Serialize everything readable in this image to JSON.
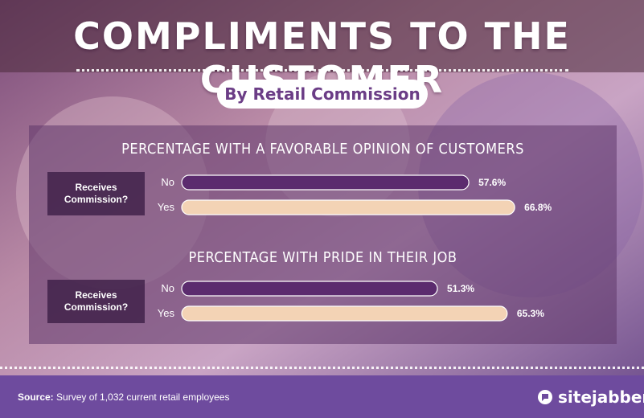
{
  "header": {
    "title": "COMPLIMENTS TO THE CUSTOMER",
    "subtitle": "By Retail Commission"
  },
  "row_label": "Receives Commission?",
  "footer": {
    "source_label": "Source:",
    "source_text": " Survey of 1,032 current retail employees",
    "brand": "sitejabber",
    "brand_icon": "sitejabber-logo-icon"
  },
  "colors": {
    "no_bar": "#5b2b6e",
    "yes_bar": "#f3d3b5",
    "footer": "#6e4b9e"
  },
  "chart_data": [
    {
      "type": "bar",
      "title": "PERCENTAGE WITH A FAVORABLE OPINION OF CUSTOMERS",
      "categories": [
        "No",
        "Yes"
      ],
      "values": [
        57.6,
        66.8
      ],
      "value_labels": [
        "57.6%",
        "66.8%"
      ],
      "xlim": [
        0,
        100
      ],
      "grid": false
    },
    {
      "type": "bar",
      "title": "PERCENTAGE WITH PRIDE IN THEIR JOB",
      "categories": [
        "No",
        "Yes"
      ],
      "values": [
        51.3,
        65.3
      ],
      "value_labels": [
        "51.3%",
        "65.3%"
      ],
      "xlim": [
        0,
        100
      ],
      "grid": false
    }
  ]
}
